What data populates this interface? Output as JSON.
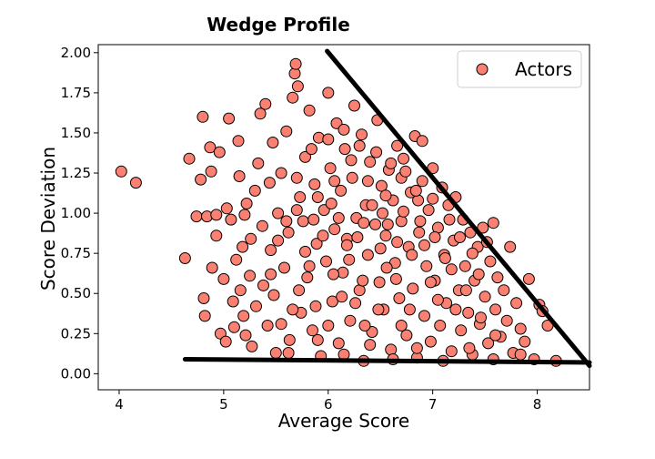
{
  "chart_data": {
    "type": "scatter",
    "title": "Wedge Profile",
    "xlabel": "Average Score",
    "ylabel": "Score Deviation",
    "xlim": [
      3.8,
      8.5
    ],
    "ylim": [
      -0.1,
      2.05
    ],
    "xticks": [
      4,
      5,
      6,
      7,
      8
    ],
    "yticks": [
      "0.00",
      "0.25",
      "0.50",
      "0.75",
      "1.00",
      "1.25",
      "1.50",
      "1.75",
      "2.00"
    ],
    "grid": false,
    "legend_position": "top-right",
    "series": [
      {
        "name": "Actors",
        "color": "#fa8072",
        "edge_color": "#000000",
        "points": [
          [
            4.02,
            1.26
          ],
          [
            4.16,
            1.19
          ],
          [
            4.63,
            0.72
          ],
          [
            4.67,
            1.34
          ],
          [
            4.74,
            0.98
          ],
          [
            4.78,
            1.21
          ],
          [
            4.8,
            1.6
          ],
          [
            4.81,
            0.47
          ],
          [
            4.82,
            0.36
          ],
          [
            4.84,
            0.98
          ],
          [
            4.87,
            1.41
          ],
          [
            4.88,
            1.26
          ],
          [
            4.89,
            0.66
          ],
          [
            4.93,
            0.99
          ],
          [
            4.93,
            0.86
          ],
          [
            4.96,
            1.38
          ],
          [
            4.97,
            0.25
          ],
          [
            5.0,
            0.59
          ],
          [
            5.02,
            0.2
          ],
          [
            5.03,
            1.03
          ],
          [
            5.05,
            1.59
          ],
          [
            5.07,
            0.96
          ],
          [
            5.09,
            0.45
          ],
          [
            5.1,
            0.29
          ],
          [
            5.12,
            0.71
          ],
          [
            5.14,
            1.45
          ],
          [
            5.15,
            1.23
          ],
          [
            5.16,
            0.52
          ],
          [
            5.18,
            0.79
          ],
          [
            5.19,
            0.36
          ],
          [
            5.2,
            0.99
          ],
          [
            5.21,
            0.24
          ],
          [
            5.22,
            1.06
          ],
          [
            5.25,
            0.61
          ],
          [
            5.26,
            0.84
          ],
          [
            5.27,
            0.17
          ],
          [
            5.3,
            1.14
          ],
          [
            5.31,
            0.42
          ],
          [
            5.33,
            1.31
          ],
          [
            5.35,
            1.62
          ],
          [
            5.37,
            0.92
          ],
          [
            5.38,
            0.55
          ],
          [
            5.4,
            1.68
          ],
          [
            5.42,
            0.3
          ],
          [
            5.44,
            1.19
          ],
          [
            5.45,
            0.77
          ],
          [
            5.47,
            1.44
          ],
          [
            5.48,
            0.49
          ],
          [
            5.5,
            0.13
          ],
          [
            5.52,
            1.0
          ],
          [
            5.55,
            1.25
          ],
          [
            5.58,
            0.66
          ],
          [
            5.6,
            1.51
          ],
          [
            5.62,
            0.88
          ],
          [
            5.63,
            0.21
          ],
          [
            5.66,
            1.72
          ],
          [
            5.68,
            1.87
          ],
          [
            5.69,
            1.93
          ],
          [
            5.71,
            1.79
          ],
          [
            5.73,
            1.1
          ],
          [
            5.74,
            0.38
          ],
          [
            5.76,
            0.95
          ],
          [
            5.78,
            1.35
          ],
          [
            5.8,
            0.6
          ],
          [
            5.82,
            1.64
          ],
          [
            5.85,
            0.27
          ],
          [
            5.87,
            1.18
          ],
          [
            5.89,
            0.81
          ],
          [
            5.91,
            1.47
          ],
          [
            5.93,
            0.11
          ],
          [
            5.96,
            1.02
          ],
          [
            5.98,
            0.7
          ],
          [
            6.0,
            1.75
          ],
          [
            6.02,
            1.28
          ],
          [
            6.04,
            0.45
          ],
          [
            6.06,
            0.9
          ],
          [
            6.08,
            1.56
          ],
          [
            6.1,
            0.19
          ],
          [
            6.12,
            1.14
          ],
          [
            6.14,
            0.63
          ],
          [
            6.16,
            1.4
          ],
          [
            6.18,
            0.84
          ],
          [
            6.21,
            0.33
          ],
          [
            6.23,
            1.22
          ],
          [
            6.25,
            1.67
          ],
          [
            6.27,
            0.97
          ],
          [
            6.3,
            0.52
          ],
          [
            6.32,
            1.49
          ],
          [
            6.34,
            0.08
          ],
          [
            6.36,
            1.05
          ],
          [
            6.38,
            0.74
          ],
          [
            6.4,
            1.32
          ],
          [
            6.42,
            0.26
          ],
          [
            6.45,
            0.93
          ],
          [
            6.47,
            1.58
          ],
          [
            6.49,
            0.57
          ],
          [
            6.51,
            1.17
          ],
          [
            6.53,
            0.4
          ],
          [
            6.55,
            0.86
          ],
          [
            6.58,
            1.27
          ],
          [
            6.6,
            0.15
          ],
          [
            6.62,
            1.08
          ],
          [
            6.64,
            0.69
          ],
          [
            6.66,
            1.42
          ],
          [
            6.68,
            0.47
          ],
          [
            6.7,
            0.95
          ],
          [
            6.72,
            1.34
          ],
          [
            6.75,
            0.24
          ],
          [
            6.77,
            0.79
          ],
          [
            6.79,
            1.13
          ],
          [
            6.81,
            0.53
          ],
          [
            6.83,
            1.48
          ],
          [
            6.85,
            0.1
          ],
          [
            6.87,
            0.88
          ],
          [
            6.9,
            1.2
          ],
          [
            6.92,
            0.36
          ],
          [
            6.94,
            0.67
          ],
          [
            6.96,
            1.02
          ],
          [
            6.98,
            0.2
          ],
          [
            7.0,
            1.28
          ],
          [
            7.02,
            0.58
          ],
          [
            7.05,
            0.91
          ],
          [
            7.07,
            0.3
          ],
          [
            7.09,
            1.16
          ],
          [
            7.11,
            0.74
          ],
          [
            7.13,
            0.44
          ],
          [
            7.15,
            1.05
          ],
          [
            7.18,
            0.14
          ],
          [
            7.2,
            0.83
          ],
          [
            7.22,
            1.1
          ],
          [
            7.25,
            0.52
          ],
          [
            7.27,
            0.27
          ],
          [
            7.29,
            0.96
          ],
          [
            7.31,
            0.67
          ],
          [
            7.34,
            0.38
          ],
          [
            7.36,
            0.88
          ],
          [
            7.38,
            0.12
          ],
          [
            7.4,
            0.58
          ],
          [
            7.43,
            0.79
          ],
          [
            7.45,
            0.31
          ],
          [
            7.48,
            0.91
          ],
          [
            7.5,
            0.48
          ],
          [
            7.53,
            0.19
          ],
          [
            7.55,
            0.7
          ],
          [
            7.58,
            0.94
          ],
          [
            7.6,
            0.4
          ],
          [
            7.62,
            0.6
          ],
          [
            7.65,
            0.23
          ],
          [
            7.68,
            0.52
          ],
          [
            7.71,
            0.33
          ],
          [
            7.74,
            0.79
          ],
          [
            7.77,
            0.13
          ],
          [
            7.8,
            0.44
          ],
          [
            7.84,
            0.28
          ],
          [
            7.88,
            0.2
          ],
          [
            7.92,
            0.59
          ],
          [
            7.97,
            0.09
          ],
          [
            8.02,
            0.43
          ],
          [
            8.05,
            0.39
          ],
          [
            8.1,
            0.3
          ],
          [
            8.18,
            0.08
          ],
          [
            5.55,
            0.31
          ],
          [
            5.72,
            0.52
          ],
          [
            5.88,
            0.42
          ],
          [
            6.05,
            0.62
          ],
          [
            6.2,
            0.71
          ],
          [
            6.35,
            0.3
          ],
          [
            6.5,
            0.78
          ],
          [
            6.65,
            0.59
          ],
          [
            6.78,
            0.4
          ],
          [
            6.92,
            0.8
          ],
          [
            7.05,
            0.46
          ],
          [
            7.18,
            0.65
          ],
          [
            7.32,
            0.52
          ],
          [
            7.46,
            0.35
          ],
          [
            7.6,
            0.24
          ],
          [
            5.6,
            0.95
          ],
          [
            5.78,
            0.76
          ],
          [
            5.95,
            0.86
          ],
          [
            6.1,
            0.97
          ],
          [
            6.28,
            0.85
          ],
          [
            6.42,
            1.05
          ],
          [
            6.57,
            0.93
          ],
          [
            6.72,
            1.01
          ],
          [
            6.88,
            0.95
          ],
          [
            7.02,
            0.85
          ],
          [
            7.16,
            0.96
          ],
          [
            5.7,
            1.22
          ],
          [
            5.9,
            1.1
          ],
          [
            6.06,
            1.2
          ],
          [
            6.22,
            1.33
          ],
          [
            6.38,
            1.2
          ],
          [
            6.55,
            1.11
          ],
          [
            6.7,
            1.22
          ],
          [
            6.86,
            1.08
          ],
          [
            5.84,
            1.4
          ],
          [
            6.0,
            1.46
          ],
          [
            6.15,
            1.52
          ],
          [
            6.3,
            1.42
          ],
          [
            6.46,
            1.38
          ],
          [
            6.6,
            1.31
          ],
          [
            6.74,
            1.26
          ],
          [
            6.9,
            1.45
          ],
          [
            5.62,
            0.13
          ],
          [
            5.9,
            0.21
          ],
          [
            6.15,
            0.12
          ],
          [
            6.4,
            0.18
          ],
          [
            6.62,
            0.09
          ],
          [
            6.85,
            0.16
          ],
          [
            7.1,
            0.08
          ],
          [
            7.35,
            0.16
          ],
          [
            7.58,
            0.09
          ],
          [
            7.84,
            0.12
          ],
          [
            6.26,
            0.44
          ],
          [
            6.48,
            0.4
          ],
          [
            6.7,
            0.3
          ],
          [
            6.98,
            0.57
          ],
          [
            7.22,
            0.4
          ],
          [
            7.44,
            0.62
          ],
          [
            5.45,
            0.62
          ],
          [
            5.66,
            0.4
          ],
          [
            5.82,
            0.67
          ],
          [
            6.0,
            0.3
          ],
          [
            6.13,
            0.48
          ],
          [
            6.33,
            0.58
          ],
          [
            6.56,
            0.66
          ],
          [
            6.8,
            0.74
          ],
          [
            7.12,
            0.72
          ],
          [
            7.38,
            0.75
          ],
          [
            5.52,
            0.83
          ],
          [
            5.7,
            1.02
          ],
          [
            5.86,
            0.96
          ],
          [
            6.03,
            1.06
          ],
          [
            6.18,
            0.8
          ],
          [
            6.34,
            0.94
          ],
          [
            6.52,
            1.0
          ],
          [
            6.66,
            0.82
          ],
          [
            6.84,
            1.14
          ],
          [
            7.0,
            1.09
          ],
          [
            7.26,
            0.85
          ],
          [
            7.52,
            0.82
          ]
        ]
      }
    ],
    "boundary_lines": [
      {
        "from": [
          5.99,
          2.01
        ],
        "to": [
          8.5,
          0.05
        ]
      },
      {
        "from": [
          4.63,
          0.09
        ],
        "to": [
          8.5,
          0.07
        ]
      }
    ]
  }
}
